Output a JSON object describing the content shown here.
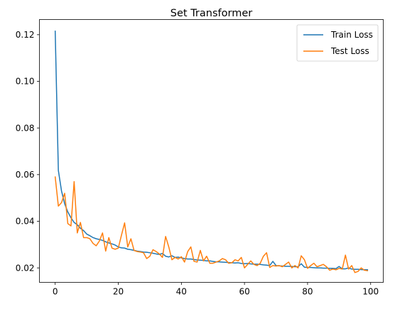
{
  "chart_data": {
    "type": "line",
    "title": "Set Transformer",
    "xlabel": "",
    "ylabel": "",
    "xlim": [
      -5,
      104
    ],
    "ylim": [
      0.0138,
      0.1265
    ],
    "xticks": [
      0,
      20,
      40,
      60,
      80,
      100
    ],
    "xtick_labels": [
      "0",
      "20",
      "40",
      "60",
      "80",
      "100"
    ],
    "yticks": [
      0.02,
      0.04,
      0.06,
      0.08,
      0.1,
      0.12
    ],
    "ytick_labels": [
      "0.02",
      "0.04",
      "0.06",
      "0.08",
      "0.10",
      "0.12"
    ],
    "grid": false,
    "legend_position": "top-right",
    "series": [
      {
        "name": "Train Loss",
        "color": "#1f77b4",
        "x": [
          0,
          1,
          2,
          3,
          4,
          5,
          6,
          7,
          8,
          9,
          10,
          11,
          12,
          13,
          14,
          15,
          16,
          17,
          18,
          19,
          20,
          21,
          22,
          23,
          24,
          25,
          26,
          27,
          28,
          29,
          30,
          31,
          32,
          33,
          34,
          35,
          36,
          37,
          38,
          39,
          40,
          41,
          42,
          43,
          44,
          45,
          46,
          47,
          48,
          49,
          50,
          51,
          52,
          53,
          54,
          55,
          56,
          57,
          58,
          59,
          60,
          61,
          62,
          63,
          64,
          65,
          66,
          67,
          68,
          69,
          70,
          71,
          72,
          73,
          74,
          75,
          76,
          77,
          78,
          79,
          80,
          81,
          82,
          83,
          84,
          85,
          86,
          87,
          88,
          89,
          90,
          91,
          92,
          93,
          94,
          95,
          96,
          97,
          98,
          99
        ],
        "values": [
          0.1215,
          0.0618,
          0.053,
          0.0475,
          0.044,
          0.0415,
          0.0395,
          0.0385,
          0.037,
          0.036,
          0.0345,
          0.0338,
          0.033,
          0.0325,
          0.0322,
          0.0318,
          0.0312,
          0.0307,
          0.0303,
          0.0298,
          0.029,
          0.0286,
          0.0285,
          0.028,
          0.0278,
          0.0275,
          0.0272,
          0.027,
          0.0268,
          0.0267,
          0.0265,
          0.0263,
          0.026,
          0.0258,
          0.0262,
          0.025,
          0.0247,
          0.0252,
          0.0245,
          0.0246,
          0.0243,
          0.024,
          0.0238,
          0.0238,
          0.0236,
          0.0234,
          0.0233,
          0.0232,
          0.023,
          0.023,
          0.0228,
          0.0226,
          0.0226,
          0.0225,
          0.0224,
          0.0223,
          0.0222,
          0.0221,
          0.0222,
          0.0219,
          0.0218,
          0.0219,
          0.0217,
          0.0216,
          0.0216,
          0.0215,
          0.0213,
          0.0212,
          0.021,
          0.0228,
          0.021,
          0.0209,
          0.0208,
          0.0207,
          0.0207,
          0.0206,
          0.0205,
          0.0205,
          0.0218,
          0.0203,
          0.0202,
          0.0202,
          0.0201,
          0.02,
          0.02,
          0.0199,
          0.0199,
          0.0198,
          0.0198,
          0.0197,
          0.0206,
          0.0196,
          0.0196,
          0.02,
          0.0195,
          0.0194,
          0.0194,
          0.0193,
          0.0192,
          0.0192
        ]
      },
      {
        "name": "Test Loss",
        "color": "#ff7f0e",
        "x": [
          0,
          1,
          2,
          3,
          4,
          5,
          6,
          7,
          8,
          9,
          10,
          11,
          12,
          13,
          14,
          15,
          16,
          17,
          18,
          19,
          20,
          21,
          22,
          23,
          24,
          25,
          26,
          27,
          28,
          29,
          30,
          31,
          32,
          33,
          34,
          35,
          36,
          37,
          38,
          39,
          40,
          41,
          42,
          43,
          44,
          45,
          46,
          47,
          48,
          49,
          50,
          51,
          52,
          53,
          54,
          55,
          56,
          57,
          58,
          59,
          60,
          61,
          62,
          63,
          64,
          65,
          66,
          67,
          68,
          69,
          70,
          71,
          72,
          73,
          74,
          75,
          76,
          77,
          78,
          79,
          80,
          81,
          82,
          83,
          84,
          85,
          86,
          87,
          88,
          89,
          90,
          91,
          92,
          93,
          94,
          95,
          96,
          97,
          98,
          99
        ],
        "values": [
          0.059,
          0.0465,
          0.048,
          0.052,
          0.039,
          0.038,
          0.057,
          0.035,
          0.0395,
          0.033,
          0.033,
          0.0325,
          0.0305,
          0.0295,
          0.0315,
          0.035,
          0.0272,
          0.033,
          0.0285,
          0.028,
          0.0285,
          0.034,
          0.0393,
          0.029,
          0.0325,
          0.0275,
          0.027,
          0.0268,
          0.0265,
          0.024,
          0.025,
          0.0278,
          0.027,
          0.026,
          0.0245,
          0.0335,
          0.029,
          0.0235,
          0.0245,
          0.0238,
          0.0248,
          0.0225,
          0.027,
          0.029,
          0.0228,
          0.0225,
          0.0275,
          0.023,
          0.025,
          0.022,
          0.022,
          0.0225,
          0.023,
          0.024,
          0.0235,
          0.022,
          0.0222,
          0.0235,
          0.023,
          0.0245,
          0.02,
          0.0215,
          0.023,
          0.0215,
          0.021,
          0.022,
          0.025,
          0.0265,
          0.0202,
          0.021,
          0.0208,
          0.021,
          0.0205,
          0.0215,
          0.0225,
          0.02,
          0.021,
          0.02,
          0.0252,
          0.0235,
          0.0198,
          0.021,
          0.022,
          0.0205,
          0.021,
          0.0215,
          0.0205,
          0.019,
          0.0195,
          0.0192,
          0.0198,
          0.0195,
          0.0255,
          0.0195,
          0.021,
          0.018,
          0.0185,
          0.02,
          0.019,
          0.0188
        ]
      }
    ]
  }
}
